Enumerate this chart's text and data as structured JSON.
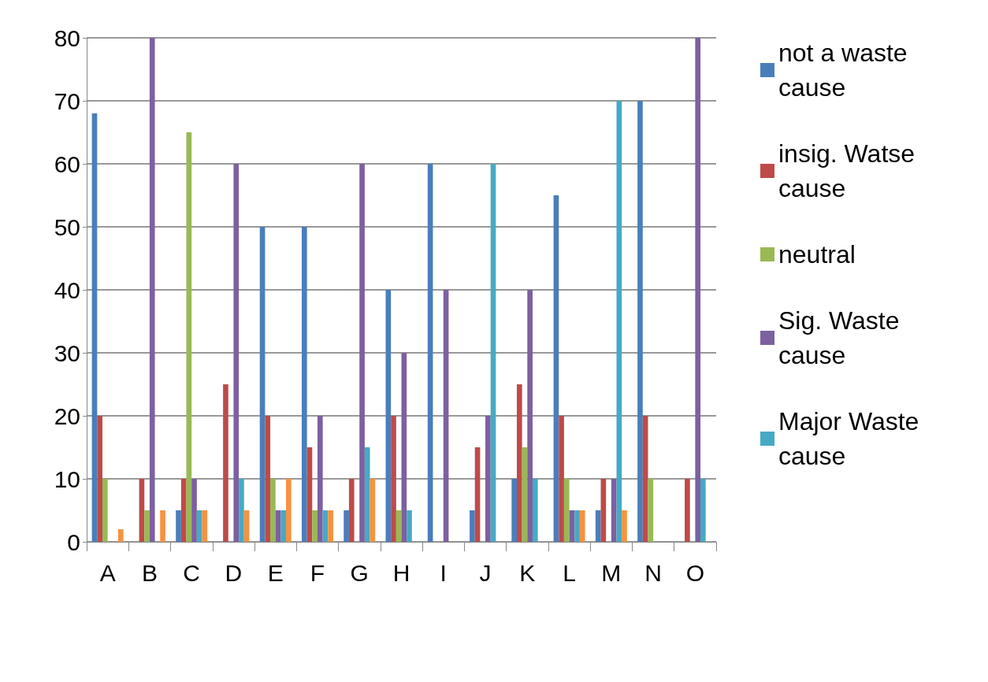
{
  "chart_data": {
    "type": "bar",
    "categories": [
      "A",
      "B",
      "C",
      "D",
      "E",
      "F",
      "G",
      "H",
      "I",
      "J",
      "K",
      "L",
      "M",
      "N",
      "O"
    ],
    "series": [
      {
        "name": "not a waste cause",
        "color": "#4a7ebb",
        "values": [
          68,
          0,
          5,
          0,
          50,
          50,
          5,
          40,
          60,
          5,
          10,
          55,
          5,
          70,
          0
        ]
      },
      {
        "name": "insig. Watse cause",
        "color": "#be4b48",
        "values": [
          20,
          10,
          10,
          25,
          20,
          15,
          10,
          20,
          0,
          15,
          25,
          20,
          10,
          20,
          10
        ]
      },
      {
        "name": "neutral",
        "color": "#98b954",
        "values": [
          10,
          5,
          65,
          0,
          10,
          5,
          0,
          5,
          0,
          0,
          15,
          10,
          0,
          10,
          0
        ]
      },
      {
        "name": "Sig. Waste cause",
        "color": "#7d60a0",
        "values": [
          0,
          80,
          10,
          60,
          5,
          20,
          60,
          30,
          40,
          20,
          40,
          5,
          10,
          0,
          80
        ]
      },
      {
        "name": "Major Waste cause",
        "color": "#46aac5",
        "values": [
          0,
          0,
          5,
          10,
          5,
          5,
          15,
          5,
          0,
          60,
          10,
          5,
          70,
          0,
          10
        ]
      },
      {
        "color": "#f69240",
        "values": [
          2,
          5,
          5,
          5,
          10,
          5,
          10,
          0,
          0,
          0,
          0,
          5,
          5,
          0,
          0
        ]
      }
    ],
    "ylim": [
      0,
      80
    ],
    "yticks": [
      0,
      10,
      20,
      30,
      40,
      50,
      60,
      70,
      80
    ],
    "grid": "y",
    "legend": "right"
  }
}
